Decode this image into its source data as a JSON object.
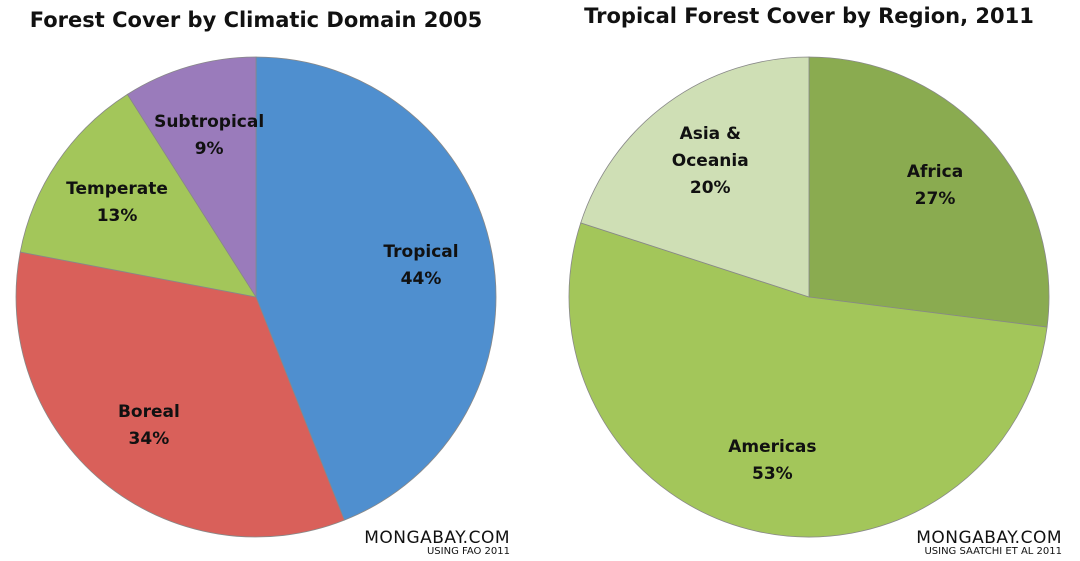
{
  "chart_data": [
    {
      "type": "pie",
      "title": "Forest Cover by Climatic Domain 2005",
      "categories": [
        "Tropical",
        "Boreal",
        "Temperate",
        "Subtropical"
      ],
      "values": [
        44,
        34,
        13,
        9
      ],
      "value_labels": [
        "44%",
        "34%",
        "13%",
        "9%"
      ],
      "colors": [
        "#4f8fcf",
        "#d9605a",
        "#a3c65a",
        "#9a7bbb"
      ],
      "source": "MONGABAY.COM",
      "note": "USING FAO 2011"
    },
    {
      "type": "pie",
      "title": "Tropical Forest Cover by Region, 2011",
      "categories": [
        "Africa",
        "Americas",
        "Asia & Oceania"
      ],
      "values": [
        27,
        53,
        20
      ],
      "value_labels": [
        "27%",
        "53%",
        "20%"
      ],
      "colors": [
        "#8aab50",
        "#a3c65a",
        "#cfdfb5"
      ],
      "source": "MONGABAY.COM",
      "note": "USING SAATCHI ET AL 2011"
    }
  ]
}
